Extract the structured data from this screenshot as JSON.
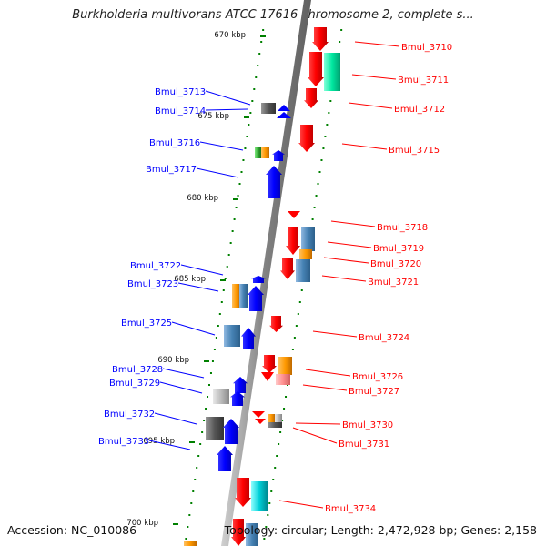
{
  "title": "Burkholderia multivorans ATCC 17616 chromosome 2, complete s...",
  "footer": {
    "accession": "Accession: NC_010086",
    "summary": "Topology: circular; Length: 2,472,928 bp; Genes: 2,158"
  },
  "colors": {
    "forward_strand": "#0000ff",
    "reverse_strand": "#ff0000",
    "tick": "#008000",
    "axis": "#808080"
  },
  "ruler": [
    "670 kbp",
    "675 kbp",
    "680 kbp",
    "685 kbp",
    "690 kbp",
    "695 kbp",
    "700 kbp"
  ],
  "genes_left": [
    "Bmul_3713",
    "Bmul_3714",
    "Bmul_3716",
    "Bmul_3717",
    "Bmul_3722",
    "Bmul_3723",
    "Bmul_3725",
    "Bmul_3728",
    "Bmul_3729",
    "Bmul_3732",
    "Bmul_3733"
  ],
  "genes_right": [
    "Bmul_3710",
    "Bmul_3711",
    "Bmul_3712",
    "Bmul_3715",
    "Bmul_3718",
    "Bmul_3719",
    "Bmul_3720",
    "Bmul_3721",
    "Bmul_3724",
    "Bmul_3726",
    "Bmul_3727",
    "Bmul_3730",
    "Bmul_3731",
    "Bmul_3734"
  ]
}
